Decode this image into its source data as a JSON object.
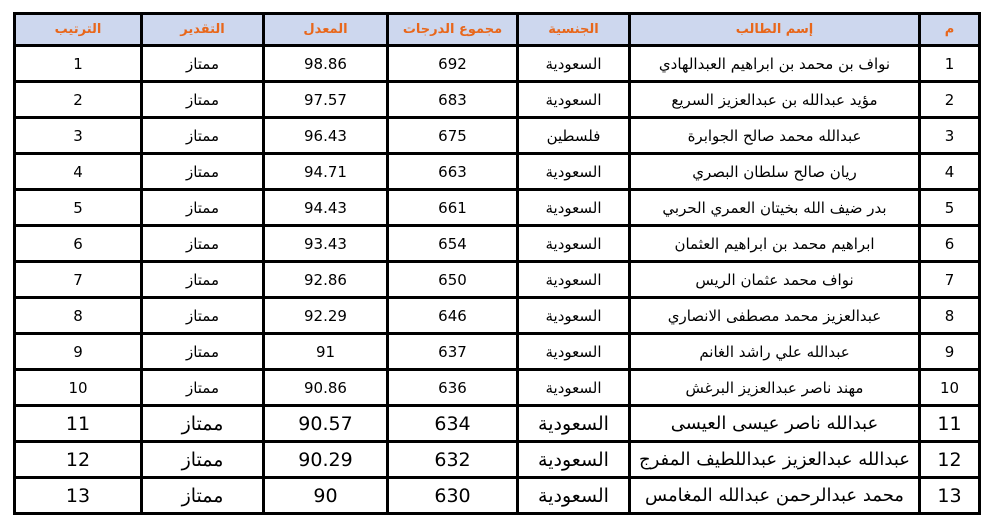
{
  "table": {
    "header_bg": "#cdd7ee",
    "header_text_color": "#e8671b",
    "border_color": "#000000",
    "columns": [
      {
        "key": "num",
        "label": "م"
      },
      {
        "key": "name",
        "label": "إسم الطالب"
      },
      {
        "key": "nationality",
        "label": "الجنسية"
      },
      {
        "key": "total",
        "label": "مجموع الدرجات"
      },
      {
        "key": "average",
        "label": "المعدل"
      },
      {
        "key": "grade",
        "label": "التقدير"
      },
      {
        "key": "rank",
        "label": "الترتيب"
      }
    ],
    "rows": [
      {
        "num": "1",
        "name": "نواف بن محمد بن ابراهيم العبدالهادي",
        "nationality": "السعودية",
        "total": "692",
        "average": "98.86",
        "grade": "ممتاز",
        "rank": "1",
        "large": false
      },
      {
        "num": "2",
        "name": "مؤيد عبدالله بن عبدالعزيز السريع",
        "nationality": "السعودية",
        "total": "683",
        "average": "97.57",
        "grade": "ممتاز",
        "rank": "2",
        "large": false
      },
      {
        "num": "3",
        "name": "عبدالله محمد صالح الجوابرة",
        "nationality": "فلسطين",
        "total": "675",
        "average": "96.43",
        "grade": "ممتاز",
        "rank": "3",
        "large": false
      },
      {
        "num": "4",
        "name": "ريان صالح سلطان البصري",
        "nationality": "السعودية",
        "total": "663",
        "average": "94.71",
        "grade": "ممتاز",
        "rank": "4",
        "large": false
      },
      {
        "num": "5",
        "name": "بدر ضيف الله بخيتان العمري الحربي",
        "nationality": "السعودية",
        "total": "661",
        "average": "94.43",
        "grade": "ممتاز",
        "rank": "5",
        "large": false
      },
      {
        "num": "6",
        "name": "ابراهيم محمد بن ابراهيم العثمان",
        "nationality": "السعودية",
        "total": "654",
        "average": "93.43",
        "grade": "ممتاز",
        "rank": "6",
        "large": false
      },
      {
        "num": "7",
        "name": "نواف محمد عثمان الريس",
        "nationality": "السعودية",
        "total": "650",
        "average": "92.86",
        "grade": "ممتاز",
        "rank": "7",
        "large": false
      },
      {
        "num": "8",
        "name": "عبدالعزيز محمد مصطفى الانصاري",
        "nationality": "السعودية",
        "total": "646",
        "average": "92.29",
        "grade": "ممتاز",
        "rank": "8",
        "large": false
      },
      {
        "num": "9",
        "name": "عبدالله علي راشد الغانم",
        "nationality": "السعودية",
        "total": "637",
        "average": "91",
        "grade": "ممتاز",
        "rank": "9",
        "large": false
      },
      {
        "num": "10",
        "name": "مهند ناصر عبدالعزيز البرغش",
        "nationality": "السعودية",
        "total": "636",
        "average": "90.86",
        "grade": "ممتاز",
        "rank": "10",
        "large": false
      },
      {
        "num": "11",
        "name": "عبدالله ناصر عيسى العيسى",
        "nationality": "السعودية",
        "total": "634",
        "average": "90.57",
        "grade": "ممتاز",
        "rank": "11",
        "large": true
      },
      {
        "num": "12",
        "name": "عبدالله عبدالعزيز عبداللطيف المفرج",
        "nationality": "السعودية",
        "total": "632",
        "average": "90.29",
        "grade": "ممتاز",
        "rank": "12",
        "large": true
      },
      {
        "num": "13",
        "name": "محمد عبدالرحمن عبدالله المغامس",
        "nationality": "السعودية",
        "total": "630",
        "average": "90",
        "grade": "ممتاز",
        "rank": "13",
        "large": true
      }
    ]
  }
}
